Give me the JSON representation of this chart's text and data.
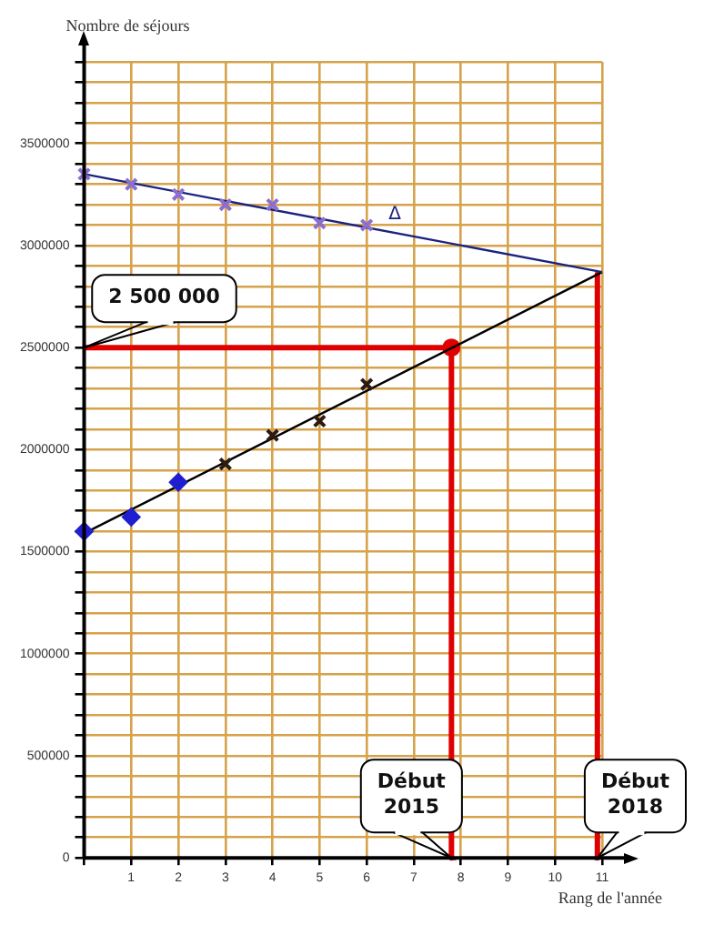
{
  "chart_data": {
    "type": "scatter",
    "xlabel": "Rang de l'année",
    "ylabel": "Nombre de séjours",
    "xlim": [
      0,
      11
    ],
    "ylim": [
      0,
      3900000
    ],
    "xticks": [
      {
        "value": 0,
        "label": null
      },
      1,
      2,
      3,
      4,
      5,
      6,
      7,
      8,
      9,
      10,
      11
    ],
    "yticks": [
      0,
      {
        "value": 100000,
        "label": null
      },
      {
        "value": 200000,
        "label": null
      },
      {
        "value": 300000,
        "label": null
      },
      {
        "value": 400000,
        "label": null
      },
      500000,
      {
        "value": 600000,
        "label": null
      },
      {
        "value": 700000,
        "label": null
      },
      {
        "value": 800000,
        "label": null
      },
      {
        "value": 900000,
        "label": null
      },
      1000000,
      {
        "value": 1100000,
        "label": null
      },
      {
        "value": 1200000,
        "label": null
      },
      {
        "value": 1300000,
        "label": null
      },
      {
        "value": 1400000,
        "label": null
      },
      1500000,
      {
        "value": 1600000,
        "label": null
      },
      {
        "value": 1700000,
        "label": null
      },
      {
        "value": 1800000,
        "label": null
      },
      {
        "value": 1900000,
        "label": null
      },
      2000000,
      {
        "value": 2100000,
        "label": null
      },
      {
        "value": 2200000,
        "label": null
      },
      {
        "value": 2300000,
        "label": null
      },
      {
        "value": 2400000,
        "label": null
      },
      2500000,
      {
        "value": 2600000,
        "label": null
      },
      {
        "value": 2700000,
        "label": null
      },
      {
        "value": 2800000,
        "label": null
      },
      {
        "value": 2900000,
        "label": null
      },
      3000000,
      {
        "value": 3100000,
        "label": null
      },
      {
        "value": 3200000,
        "label": null
      },
      {
        "value": 3300000,
        "label": null
      },
      {
        "value": 3400000,
        "label": null
      },
      3500000,
      {
        "value": 3600000,
        "label": null
      },
      {
        "value": 3700000,
        "label": null
      },
      {
        "value": 3800000,
        "label": null
      },
      {
        "value": 3900000,
        "label": null
      }
    ],
    "grid": true,
    "legend": false,
    "series": [
      {
        "type": "scatter",
        "color": "#8a6fd0",
        "marker": "cross",
        "x": [
          0,
          1,
          2,
          3,
          4,
          5,
          6
        ],
        "values": [
          3350000,
          3300000,
          3250000,
          3200000,
          3200000,
          3110000,
          3100000
        ]
      },
      {
        "type": "scatter",
        "color": "#1f1fd0",
        "marker": "diamond",
        "x": [
          0,
          1,
          2
        ],
        "values": [
          1600000,
          1670000,
          1840000
        ]
      },
      {
        "type": "scatter",
        "color": "#2a1a10",
        "marker": "cross",
        "x": [
          3,
          4,
          5,
          6
        ],
        "values": [
          1930000,
          2070000,
          2140000,
          2320000
        ]
      },
      {
        "type": "line",
        "name": "Δ",
        "color": "#1a237e",
        "marker": "none",
        "x": [
          0,
          11
        ],
        "values": [
          3350000,
          2870000
        ]
      },
      {
        "type": "line",
        "color": "#000000",
        "marker": "none",
        "x": [
          0,
          11
        ],
        "values": [
          1590000,
          2870000
        ]
      },
      {
        "type": "line",
        "color": "#e00000",
        "marker": "none",
        "x": [
          0,
          7.8,
          7.8
        ],
        "values": [
          2500000,
          2500000,
          0
        ]
      },
      {
        "type": "line",
        "color": "#e00000",
        "marker": "none",
        "x": [
          10.9,
          10.9
        ],
        "values": [
          2860000,
          0
        ]
      },
      {
        "type": "scatter",
        "color": "#e00000",
        "marker": "circle",
        "x": [
          7.8
        ],
        "values": [
          2500000
        ]
      }
    ],
    "annotations": [
      {
        "text": "2 500 000",
        "x": 0,
        "y": 2500000
      },
      {
        "text": "Début\n2015",
        "x": 7.8,
        "y": 0
      },
      {
        "text": "Début\n2018",
        "x": 10.9,
        "y": 0
      }
    ]
  }
}
